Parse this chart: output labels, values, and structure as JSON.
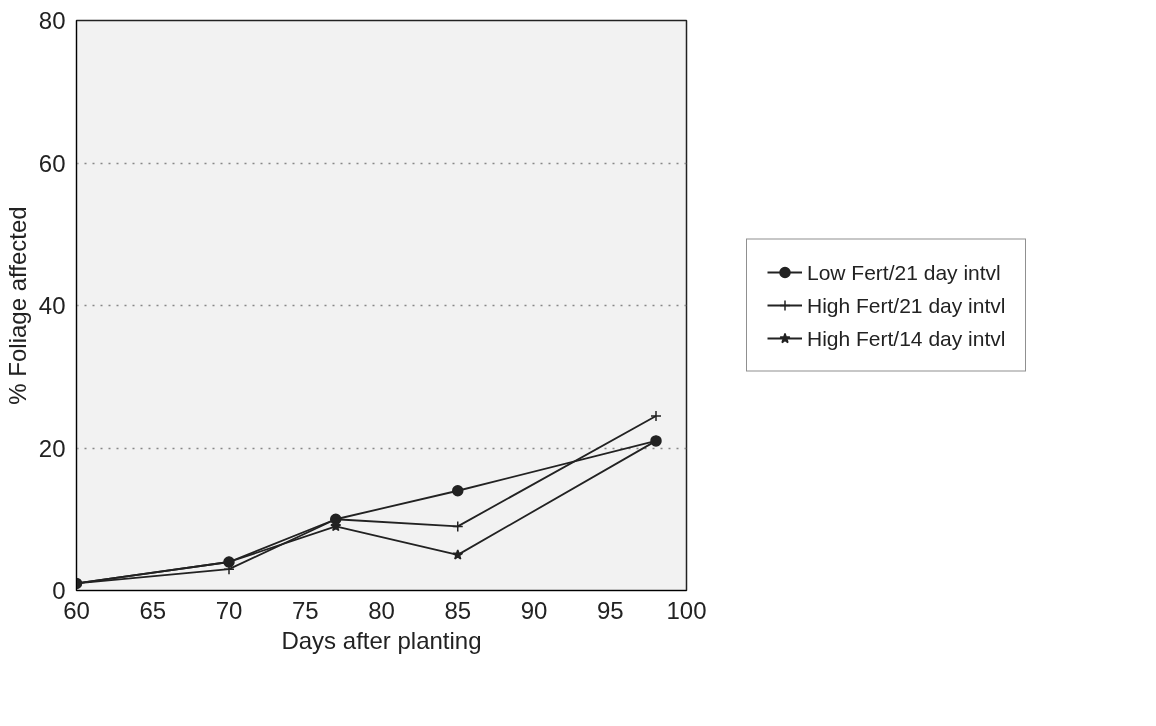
{
  "chart_data": {
    "type": "line",
    "xlabel": "Days after planting",
    "ylabel": "% Foliage affected",
    "x": [
      60,
      70,
      77,
      85,
      98
    ],
    "series": [
      {
        "name": "Low Fert/21 day intvl",
        "color": "#222222",
        "marker": "circle",
        "values": [
          1,
          4,
          10,
          14,
          21
        ]
      },
      {
        "name": "High Fert/21 day intvl",
        "color": "#222222",
        "marker": "cross",
        "values": [
          1,
          3,
          10,
          9,
          24.5
        ]
      },
      {
        "name": "High Fert/14 day intvl",
        "color": "#222222",
        "marker": "star",
        "values": [
          1,
          4,
          9,
          5,
          21
        ]
      }
    ],
    "xlim": [
      60,
      100
    ],
    "xticks": [
      60,
      65,
      70,
      75,
      80,
      85,
      90,
      95,
      100
    ],
    "ylim": [
      0,
      80
    ],
    "yticks": [
      0,
      20,
      40,
      60,
      80
    ],
    "grid": "y",
    "legend": "right",
    "line_style": "solid"
  }
}
